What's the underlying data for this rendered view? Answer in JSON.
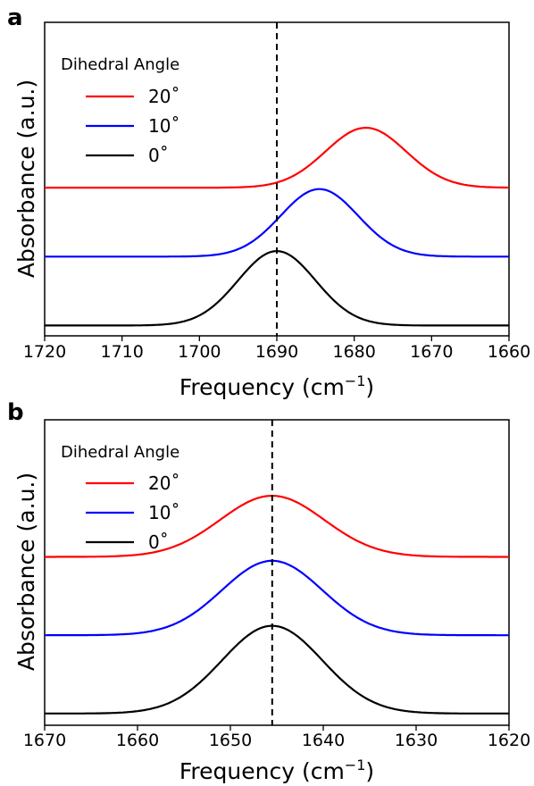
{
  "chart_data": [
    {
      "panel_label": "a",
      "type": "line",
      "xlabel": "Frequency (cm",
      "xlabel_sup": "−1",
      "xlabel_close": ")",
      "ylabel": "Absorbance (a.u.)",
      "xlim": [
        1720,
        1660
      ],
      "x_inverted": true,
      "xticks": [
        "1720",
        "1710",
        "1700",
        "1690",
        "1680",
        "1670",
        "1660"
      ],
      "reference_line_x": 1690,
      "legend": {
        "title": "Dihedral Angle",
        "placement": "top-left"
      },
      "series": [
        {
          "name": "20˚",
          "color": "#ff0000",
          "baseline": 2.0,
          "peak_x": 1678.5,
          "peak_height": 0.87,
          "width": 5.2
        },
        {
          "name": "10˚",
          "color": "#0000ff",
          "baseline": 1.0,
          "peak_x": 1684.5,
          "peak_height": 0.98,
          "width": 5.0
        },
        {
          "name": "0˚",
          "color": "#000000",
          "baseline": 0.0,
          "peak_x": 1690.0,
          "peak_height": 1.08,
          "width": 5.0
        }
      ]
    },
    {
      "panel_label": "b",
      "type": "line",
      "xlabel": "Frequency (cm",
      "xlabel_sup": "−1",
      "xlabel_close": ")",
      "ylabel": "Absorbance (a.u.)",
      "xlim": [
        1670,
        1620
      ],
      "x_inverted": true,
      "xticks": [
        "1670",
        "1660",
        "1650",
        "1640",
        "1630",
        "1620"
      ],
      "reference_line_x": 1645.5,
      "legend": {
        "title": "Dihedral Angle",
        "placement": "top-left"
      },
      "series": [
        {
          "name": "20˚",
          "color": "#ff0000",
          "baseline": 2.0,
          "peak_x": 1645.5,
          "peak_height": 0.78,
          "width": 5.6
        },
        {
          "name": "10˚",
          "color": "#0000ff",
          "baseline": 1.0,
          "peak_x": 1645.5,
          "peak_height": 0.95,
          "width": 5.4
        },
        {
          "name": "0˚",
          "color": "#000000",
          "baseline": 0.0,
          "peak_x": 1645.5,
          "peak_height": 1.12,
          "width": 5.4
        }
      ]
    }
  ]
}
